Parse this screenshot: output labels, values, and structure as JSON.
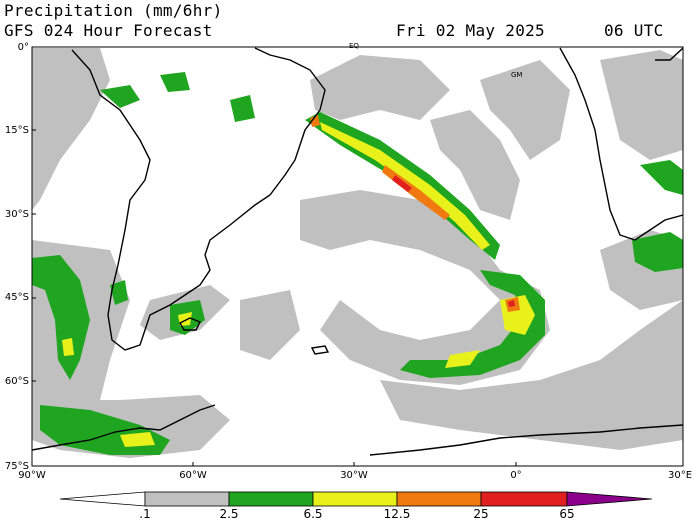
{
  "header": {
    "title": "Precipitation (mm/6hr)",
    "model": "GFS 024 Hour Forecast",
    "date": "Fri 02 May 2025",
    "time": "06 UTC"
  },
  "map": {
    "lat_labels": [
      "0°",
      "15°S",
      "30°S",
      "45°S",
      "60°S",
      "75°S"
    ],
    "lon_labels": [
      "90°W",
      "60°W",
      "30°W",
      "0°",
      "30°E"
    ],
    "markers": [
      "EQ",
      "GM"
    ]
  },
  "colorbar": {
    "levels": [
      ".1",
      "2.5",
      "6.5",
      "12.5",
      "25",
      "65"
    ],
    "colors": [
      "#ffffff",
      "#c0c0c0",
      "#1fa51f",
      "#e8f21a",
      "#f07a10",
      "#e21f1f",
      "#8b008b"
    ]
  },
  "colors": {
    "light": "#c0c0c0",
    "moderate": "#1fa51f",
    "heavy": "#e8f21a",
    "very_heavy": "#f07a10",
    "extreme": "#e21f1f",
    "coast": "#000000"
  }
}
